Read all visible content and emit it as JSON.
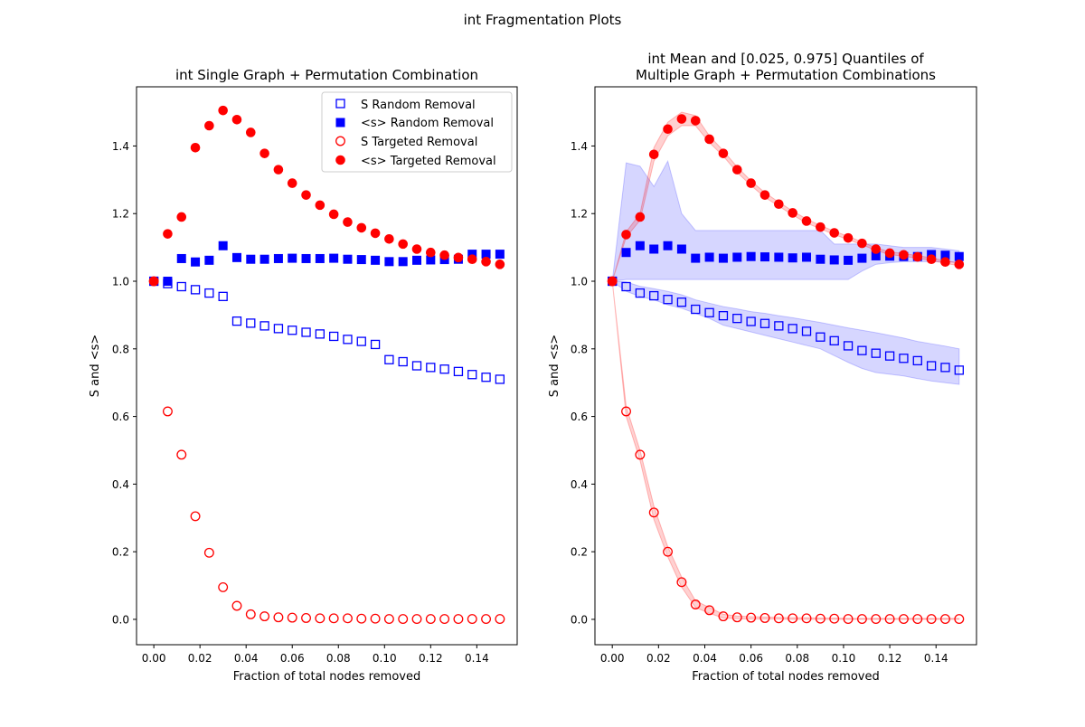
{
  "figure": {
    "suptitle": "int Fragmentation Plots"
  },
  "colors": {
    "random": "#0000ff",
    "targeted": "#ff0000",
    "random_band": "#0000ff",
    "targeted_band": "#ff0000"
  },
  "chart_data": [
    {
      "type": "scatter",
      "title": "int Single Graph + Permutation Combination",
      "title_line2": "",
      "xlabel": "Fraction of total nodes removed",
      "ylabel": "S and <s>",
      "xlim": [
        -0.0075,
        0.1575
      ],
      "ylim": [
        -0.075,
        1.575
      ],
      "xticks": [
        "0.00",
        "0.02",
        "0.04",
        "0.06",
        "0.08",
        "0.10",
        "0.12",
        "0.14"
      ],
      "yticks": [
        "0.0",
        "0.2",
        "0.4",
        "0.6",
        "0.8",
        "1.0",
        "1.2",
        "1.4"
      ],
      "legend": {
        "placement": "upper right",
        "entries": [
          "S Random Removal",
          "<s> Random Removal",
          "S Targeted Removal",
          "<s> Targeted Removal"
        ]
      },
      "x": [
        0.0,
        0.006,
        0.012,
        0.018,
        0.024,
        0.03,
        0.036,
        0.042,
        0.048,
        0.054,
        0.06,
        0.066,
        0.072,
        0.078,
        0.084,
        0.09,
        0.096,
        0.102,
        0.108,
        0.114,
        0.12,
        0.126,
        0.132,
        0.138,
        0.144,
        0.15
      ],
      "series": [
        {
          "name": "S Random Removal",
          "marker": "square-open",
          "color": "#0000ff",
          "values": [
            1.0,
            0.993,
            0.984,
            0.975,
            0.965,
            0.955,
            0.882,
            0.876,
            0.868,
            0.86,
            0.855,
            0.849,
            0.844,
            0.837,
            0.828,
            0.822,
            0.813,
            0.768,
            0.762,
            0.75,
            0.745,
            0.74,
            0.733,
            0.724,
            0.716,
            0.71
          ]
        },
        {
          "name": "<s> Random Removal",
          "marker": "square-filled",
          "color": "#0000ff",
          "values": [
            1.0,
            1.0,
            1.067,
            1.057,
            1.062,
            1.105,
            1.07,
            1.065,
            1.065,
            1.067,
            1.068,
            1.067,
            1.067,
            1.068,
            1.065,
            1.064,
            1.062,
            1.058,
            1.058,
            1.062,
            1.063,
            1.064,
            1.065,
            1.08,
            1.08,
            1.08
          ]
        },
        {
          "name": "S Targeted Removal",
          "marker": "circle-open",
          "color": "#ff0000",
          "values": [
            1.0,
            0.615,
            0.487,
            0.305,
            0.197,
            0.095,
            0.04,
            0.015,
            0.009,
            0.006,
            0.005,
            0.004,
            0.003,
            0.003,
            0.003,
            0.002,
            0.002,
            0.001,
            0.001,
            0.001,
            0.001,
            0.001,
            0.001,
            0.001,
            0.001,
            0.001
          ]
        },
        {
          "name": "<s> Targeted Removal",
          "marker": "circle-filled",
          "color": "#ff0000",
          "values": [
            1.0,
            1.14,
            1.19,
            1.395,
            1.46,
            1.505,
            1.478,
            1.44,
            1.378,
            1.33,
            1.29,
            1.255,
            1.225,
            1.198,
            1.175,
            1.158,
            1.142,
            1.125,
            1.11,
            1.095,
            1.085,
            1.077,
            1.07,
            1.065,
            1.058,
            1.05
          ]
        }
      ]
    },
    {
      "type": "scatter",
      "title": "int Mean and [0.025, 0.975] Quantiles of",
      "title_line2": "Multiple Graph + Permutation Combinations",
      "xlabel": "Fraction of total nodes removed",
      "ylabel": "S and <s>",
      "xlim": [
        -0.0075,
        0.1575
      ],
      "ylim": [
        -0.075,
        1.575
      ],
      "xticks": [
        "0.00",
        "0.02",
        "0.04",
        "0.06",
        "0.08",
        "0.10",
        "0.12",
        "0.14"
      ],
      "yticks": [
        "0.0",
        "0.2",
        "0.4",
        "0.6",
        "0.8",
        "1.0",
        "1.2",
        "1.4"
      ],
      "x": [
        0.0,
        0.006,
        0.012,
        0.018,
        0.024,
        0.03,
        0.036,
        0.042,
        0.048,
        0.054,
        0.06,
        0.066,
        0.072,
        0.078,
        0.084,
        0.09,
        0.096,
        0.102,
        0.108,
        0.114,
        0.12,
        0.126,
        0.132,
        0.138,
        0.144,
        0.15
      ],
      "series": [
        {
          "name": "S Random Removal",
          "marker": "square-open",
          "color": "#0000ff",
          "values": [
            1.0,
            0.984,
            0.965,
            0.957,
            0.946,
            0.938,
            0.917,
            0.907,
            0.898,
            0.89,
            0.881,
            0.875,
            0.868,
            0.86,
            0.852,
            0.835,
            0.824,
            0.809,
            0.795,
            0.787,
            0.779,
            0.772,
            0.765,
            0.75,
            0.745,
            0.737
          ],
          "band_lower": [
            1.0,
            0.97,
            0.955,
            0.945,
            0.93,
            0.92,
            0.905,
            0.89,
            0.87,
            0.86,
            0.85,
            0.84,
            0.83,
            0.82,
            0.81,
            0.8,
            0.78,
            0.76,
            0.742,
            0.73,
            0.725,
            0.72,
            0.712,
            0.705,
            0.7,
            0.695
          ],
          "band_upper": [
            1.0,
            0.998,
            0.985,
            0.978,
            0.97,
            0.96,
            0.945,
            0.935,
            0.925,
            0.918,
            0.91,
            0.905,
            0.898,
            0.892,
            0.885,
            0.878,
            0.87,
            0.862,
            0.855,
            0.848,
            0.84,
            0.832,
            0.822,
            0.815,
            0.808,
            0.8
          ]
        },
        {
          "name": "<s> Random Removal",
          "marker": "square-filled",
          "color": "#0000ff",
          "values": [
            1.0,
            1.085,
            1.105,
            1.095,
            1.105,
            1.095,
            1.068,
            1.071,
            1.068,
            1.071,
            1.073,
            1.072,
            1.071,
            1.069,
            1.071,
            1.065,
            1.063,
            1.062,
            1.068,
            1.075,
            1.074,
            1.073,
            1.073,
            1.079,
            1.077,
            1.073
          ],
          "band_lower": [
            1.0,
            1.005,
            1.005,
            1.005,
            1.005,
            1.005,
            1.005,
            1.005,
            1.005,
            1.005,
            1.005,
            1.005,
            1.005,
            1.005,
            1.005,
            1.005,
            1.005,
            1.005,
            1.03,
            1.05,
            1.055,
            1.058,
            1.058,
            1.058,
            1.058,
            1.055
          ],
          "band_upper": [
            1.0,
            1.35,
            1.34,
            1.28,
            1.355,
            1.2,
            1.15,
            1.15,
            1.15,
            1.15,
            1.15,
            1.15,
            1.15,
            1.15,
            1.15,
            1.15,
            1.11,
            1.11,
            1.11,
            1.11,
            1.105,
            1.1,
            1.1,
            1.1,
            1.095,
            1.09
          ]
        },
        {
          "name": "S Targeted Removal",
          "marker": "circle-open",
          "color": "#ff0000",
          "values": [
            1.0,
            0.615,
            0.487,
            0.316,
            0.2,
            0.11,
            0.044,
            0.027,
            0.009,
            0.006,
            0.005,
            0.004,
            0.003,
            0.003,
            0.003,
            0.002,
            0.002,
            0.001,
            0.001,
            0.001,
            0.001,
            0.001,
            0.001,
            0.001,
            0.001,
            0.001
          ],
          "band_lower": [
            1.0,
            0.6,
            0.47,
            0.295,
            0.185,
            0.095,
            0.035,
            0.018,
            0.004,
            0.002,
            0.001,
            0.001,
            0.001,
            0.0,
            0.0,
            0.0,
            0.0,
            0.0,
            0.0,
            0.0,
            0.0,
            0.0,
            0.0,
            0.0,
            0.0,
            0.0
          ],
          "band_upper": [
            1.0,
            0.63,
            0.5,
            0.335,
            0.215,
            0.125,
            0.055,
            0.035,
            0.015,
            0.01,
            0.008,
            0.007,
            0.006,
            0.005,
            0.005,
            0.004,
            0.004,
            0.003,
            0.003,
            0.003,
            0.003,
            0.003,
            0.003,
            0.003,
            0.003,
            0.003
          ]
        },
        {
          "name": "<s> Targeted Removal",
          "marker": "circle-filled",
          "color": "#ff0000",
          "values": [
            1.0,
            1.138,
            1.19,
            1.375,
            1.45,
            1.48,
            1.475,
            1.42,
            1.378,
            1.33,
            1.29,
            1.255,
            1.228,
            1.202,
            1.178,
            1.16,
            1.143,
            1.128,
            1.112,
            1.095,
            1.083,
            1.078,
            1.072,
            1.065,
            1.057,
            1.05
          ],
          "band_lower": [
            1.0,
            1.13,
            1.18,
            1.355,
            1.43,
            1.46,
            1.46,
            1.41,
            1.37,
            1.322,
            1.283,
            1.248,
            1.222,
            1.196,
            1.172,
            1.155,
            1.138,
            1.123,
            1.108,
            1.091,
            1.079,
            1.074,
            1.068,
            1.061,
            1.053,
            1.046
          ],
          "band_upper": [
            1.0,
            1.146,
            1.2,
            1.395,
            1.47,
            1.5,
            1.49,
            1.43,
            1.386,
            1.338,
            1.297,
            1.262,
            1.234,
            1.208,
            1.184,
            1.165,
            1.148,
            1.133,
            1.116,
            1.099,
            1.087,
            1.082,
            1.076,
            1.069,
            1.061,
            1.054
          ]
        }
      ]
    }
  ]
}
